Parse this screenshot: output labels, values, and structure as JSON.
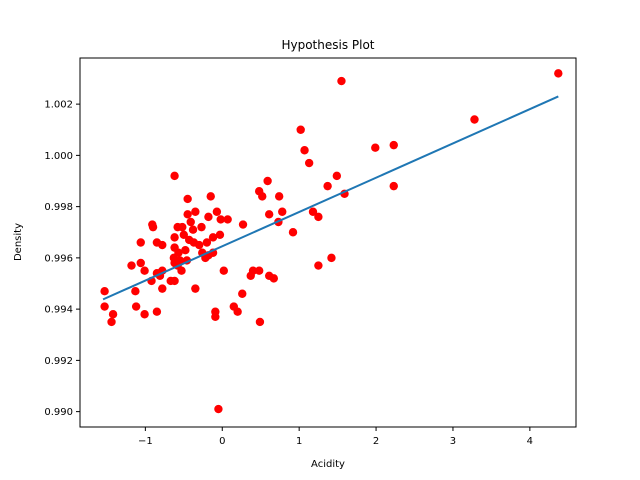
{
  "chart_data": {
    "type": "scatter",
    "title": "Hypothesis Plot",
    "xlabel": "Acidity",
    "ylabel": "Density",
    "xlim": [
      -1.85,
      4.6
    ],
    "ylim": [
      0.9894,
      1.0038
    ],
    "xticks": [
      -1,
      0,
      1,
      2,
      3,
      4
    ],
    "xtick_labels": [
      "−1",
      "0",
      "1",
      "2",
      "3",
      "4"
    ],
    "yticks": [
      0.99,
      0.992,
      0.994,
      0.996,
      0.998,
      1.0,
      1.002
    ],
    "ytick_labels": [
      "0.990",
      "0.992",
      "0.994",
      "0.996",
      "0.998",
      "1.000",
      "1.002"
    ],
    "grid": false,
    "colors": {
      "points": "#ff0000",
      "line": "#1f77b4"
    },
    "series": [
      {
        "kind": "scatter",
        "points": [
          [
            4.37,
            1.0032
          ],
          [
            1.55,
            1.0029
          ],
          [
            3.28,
            1.0014
          ],
          [
            1.02,
            1.001
          ],
          [
            2.23,
            1.0004
          ],
          [
            1.99,
            1.0003
          ],
          [
            1.07,
            1.0002
          ],
          [
            1.13,
            0.9997
          ],
          [
            1.49,
            0.9992
          ],
          [
            -0.62,
            0.9992
          ],
          [
            0.59,
            0.999
          ],
          [
            1.37,
            0.9988
          ],
          [
            2.23,
            0.9988
          ],
          [
            0.48,
            0.9986
          ],
          [
            1.59,
            0.9985
          ],
          [
            0.52,
            0.9984
          ],
          [
            0.74,
            0.9984
          ],
          [
            -0.15,
            0.9984
          ],
          [
            -0.45,
            0.9983
          ],
          [
            0.78,
            0.9978
          ],
          [
            -0.07,
            0.9978
          ],
          [
            -0.35,
            0.9978
          ],
          [
            1.18,
            0.9978
          ],
          [
            0.61,
            0.9977
          ],
          [
            -0.45,
            0.9977
          ],
          [
            1.25,
            0.9976
          ],
          [
            -0.18,
            0.9976
          ],
          [
            -0.02,
            0.9975
          ],
          [
            0.07,
            0.9975
          ],
          [
            0.73,
            0.9974
          ],
          [
            -0.41,
            0.9974
          ],
          [
            -0.58,
            0.9972
          ],
          [
            -0.91,
            0.9973
          ],
          [
            -0.27,
            0.9972
          ],
          [
            0.27,
            0.9973
          ],
          [
            -0.52,
            0.9972
          ],
          [
            -0.9,
            0.9972
          ],
          [
            -0.38,
            0.9971
          ],
          [
            0.92,
            0.997
          ],
          [
            -0.62,
            0.9968
          ],
          [
            -0.5,
            0.9969
          ],
          [
            -0.43,
            0.9967
          ],
          [
            -0.03,
            0.9969
          ],
          [
            -0.12,
            0.9968
          ],
          [
            -0.37,
            0.9966
          ],
          [
            -0.2,
            0.9966
          ],
          [
            -0.3,
            0.9965
          ],
          [
            -0.85,
            0.9966
          ],
          [
            -0.78,
            0.9965
          ],
          [
            -1.06,
            0.9966
          ],
          [
            -0.62,
            0.9964
          ],
          [
            -0.57,
            0.9962
          ],
          [
            -0.48,
            0.9963
          ],
          [
            -0.12,
            0.9962
          ],
          [
            -0.26,
            0.9962
          ],
          [
            -0.18,
            0.9961
          ],
          [
            -0.22,
            0.996
          ],
          [
            -0.63,
            0.996
          ],
          [
            -0.55,
            0.9959
          ],
          [
            -0.46,
            0.9959
          ],
          [
            -0.62,
            0.9958
          ],
          [
            -0.58,
            0.9957
          ],
          [
            -1.18,
            0.9957
          ],
          [
            -1.06,
            0.9958
          ],
          [
            -0.78,
            0.9955
          ],
          [
            -0.53,
            0.9955
          ],
          [
            -1.01,
            0.9955
          ],
          [
            0.02,
            0.9955
          ],
          [
            0.4,
            0.9955
          ],
          [
            0.48,
            0.9955
          ],
          [
            1.42,
            0.996
          ],
          [
            1.25,
            0.9957
          ],
          [
            -0.85,
            0.9954
          ],
          [
            -0.81,
            0.9953
          ],
          [
            0.37,
            0.9953
          ],
          [
            0.61,
            0.9953
          ],
          [
            0.67,
            0.9952
          ],
          [
            -0.92,
            0.9951
          ],
          [
            -0.67,
            0.9951
          ],
          [
            -0.62,
            0.9951
          ],
          [
            -0.78,
            0.9948
          ],
          [
            -0.35,
            0.9948
          ],
          [
            -1.13,
            0.9947
          ],
          [
            -1.53,
            0.9947
          ],
          [
            0.26,
            0.9946
          ],
          [
            -1.12,
            0.9941
          ],
          [
            -1.53,
            0.9941
          ],
          [
            0.15,
            0.9941
          ],
          [
            0.2,
            0.9939
          ],
          [
            -0.85,
            0.9939
          ],
          [
            -1.42,
            0.9938
          ],
          [
            -1.01,
            0.9938
          ],
          [
            -0.09,
            0.9939
          ],
          [
            -0.09,
            0.9937
          ],
          [
            -1.44,
            0.9935
          ],
          [
            0.49,
            0.9935
          ],
          [
            -0.05,
            0.9901
          ]
        ]
      },
      {
        "kind": "line",
        "points": [
          [
            -1.55,
            0.99438
          ],
          [
            4.37,
            1.0023
          ]
        ]
      }
    ]
  }
}
